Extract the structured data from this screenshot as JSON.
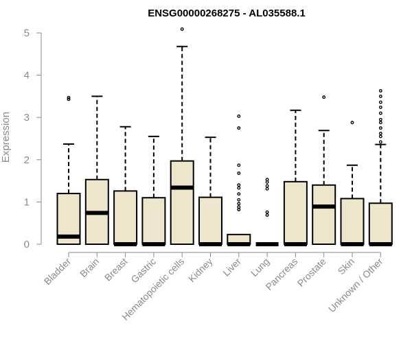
{
  "chart_data": {
    "type": "boxplot",
    "title": "ENSG00000268275 - AL035588.1",
    "xlabel": "",
    "ylabel": "Expression",
    "ylim": [
      0,
      5
    ],
    "yticks": [
      0,
      1,
      2,
      3,
      4,
      5
    ],
    "fill_color": "#ede6cd",
    "categories": [
      "Bladder",
      "Brain",
      "Breast",
      "Gastric",
      "Hematopoietic cells",
      "Kidney",
      "Liver",
      "Lung",
      "Pancreas",
      "Prostate",
      "Skin",
      "Unknown / Other"
    ],
    "boxes": [
      {
        "min": 0,
        "q1": 0,
        "median": 0.18,
        "q3": 1.2,
        "max": 2.37,
        "outliers": [
          3.43,
          3.47
        ]
      },
      {
        "min": 0,
        "q1": 0,
        "median": 0.74,
        "q3": 1.53,
        "max": 3.5,
        "outliers": []
      },
      {
        "min": 0,
        "q1": 0,
        "median": 0,
        "q3": 1.26,
        "max": 2.78,
        "outliers": []
      },
      {
        "min": 0,
        "q1": 0,
        "median": 0,
        "q3": 1.1,
        "max": 2.55,
        "outliers": []
      },
      {
        "min": 0,
        "q1": 0,
        "median": 1.34,
        "q3": 1.97,
        "max": 4.68,
        "outliers": [
          5.09
        ]
      },
      {
        "min": 0,
        "q1": 0,
        "median": 0,
        "q3": 1.11,
        "max": 2.53,
        "outliers": []
      },
      {
        "min": 0,
        "q1": 0,
        "median": 0,
        "q3": 0.23,
        "max": 0.23,
        "outliers": [
          0.82,
          0.88,
          0.96,
          1.05,
          1.19,
          1.33,
          1.4,
          1.68,
          1.87,
          2.75,
          3.03
        ]
      },
      {
        "min": 0,
        "q1": 0,
        "median": 0,
        "q3": 0,
        "max": 0,
        "outliers": [
          0.69,
          0.76,
          1.31,
          1.38,
          1.47,
          1.53
        ]
      },
      {
        "min": 0,
        "q1": 0,
        "median": 0,
        "q3": 1.48,
        "max": 3.17,
        "outliers": []
      },
      {
        "min": 0,
        "q1": 0,
        "median": 0.89,
        "q3": 1.4,
        "max": 2.69,
        "outliers": [
          3.48
        ]
      },
      {
        "min": 0,
        "q1": 0,
        "median": 0,
        "q3": 1.08,
        "max": 1.87,
        "outliers": [
          2.88
        ]
      },
      {
        "min": 0,
        "q1": 0,
        "median": 0,
        "q3": 0.97,
        "max": 2.36,
        "outliers": [
          2.42,
          2.55,
          2.62,
          2.75,
          2.88,
          2.95,
          3.1,
          3.24,
          3.36,
          3.5,
          3.63
        ]
      }
    ]
  }
}
